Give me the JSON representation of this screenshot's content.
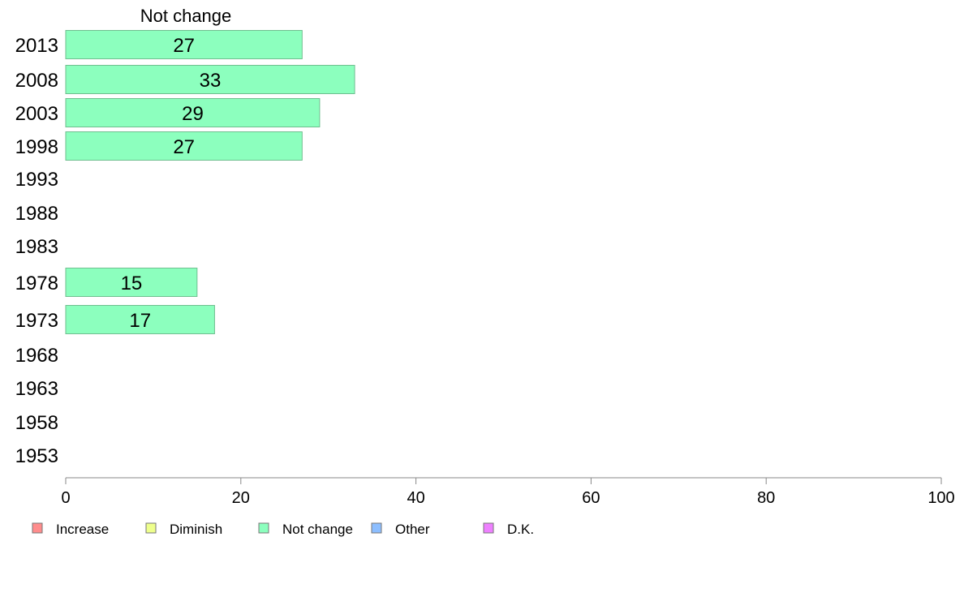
{
  "chart_data": {
    "type": "bar",
    "orientation": "horizontal",
    "panel_title": "Not change",
    "categories": [
      "2013",
      "2008",
      "2003",
      "1998",
      "1993",
      "1988",
      "1983",
      "1978",
      "1973",
      "1968",
      "1963",
      "1958",
      "1953"
    ],
    "series": [
      {
        "name": "Not change",
        "values": [
          27,
          33,
          29,
          27,
          null,
          null,
          null,
          15,
          17,
          null,
          null,
          null,
          null
        ],
        "color": "#8cffbe"
      }
    ],
    "xlim": [
      0,
      100
    ],
    "xticks": [
      0,
      20,
      40,
      60,
      80,
      100
    ],
    "grid": false,
    "legend": {
      "placement": "bottom",
      "entries": [
        {
          "label": "Increase",
          "color": "#ff8c8c"
        },
        {
          "label": "Diminish",
          "color": "#eeff8c"
        },
        {
          "label": "Not change",
          "color": "#8cffbe"
        },
        {
          "label": "Other",
          "color": "#8cbeff"
        },
        {
          "label": "D.K.",
          "color": "#ee80ff"
        }
      ]
    }
  }
}
